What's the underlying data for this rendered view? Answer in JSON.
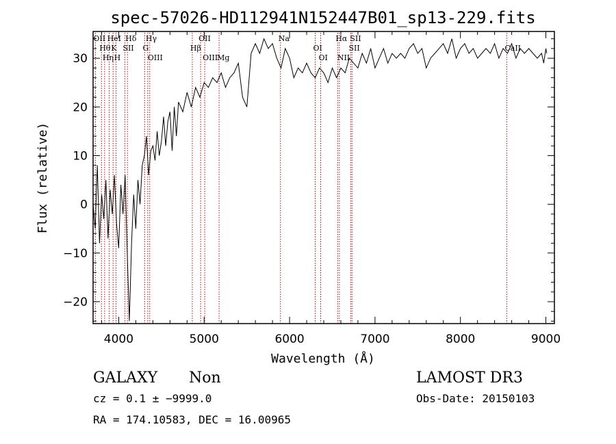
{
  "chart_data": {
    "type": "line",
    "title": "spec-57026-HD112941N152447B01_sp13-229.fits",
    "xlabel": "Wavelength (Å)",
    "ylabel": "Flux (relative)",
    "xlim": [
      3700,
      9100
    ],
    "ylim": [
      -24.5,
      35.5
    ],
    "xticks": [
      4000,
      5000,
      6000,
      7000,
      8000,
      9000
    ],
    "yticks": [
      -20,
      -10,
      0,
      10,
      20,
      30
    ],
    "xtick_labels": [
      "4000",
      "5000",
      "6000",
      "7000",
      "8000",
      "9000"
    ],
    "ytick_labels": [
      "−20",
      "−10",
      "0",
      "10",
      "20",
      "30"
    ],
    "series": [
      {
        "name": "spectrum",
        "x": [
          3700,
          3725,
          3750,
          3775,
          3800,
          3825,
          3850,
          3875,
          3900,
          3925,
          3950,
          3975,
          4000,
          4025,
          4050,
          4075,
          4100,
          4125,
          4150,
          4175,
          4200,
          4225,
          4250,
          4275,
          4300,
          4325,
          4350,
          4375,
          4400,
          4425,
          4450,
          4475,
          4500,
          4525,
          4550,
          4575,
          4600,
          4625,
          4650,
          4675,
          4700,
          4750,
          4800,
          4850,
          4900,
          4950,
          5000,
          5050,
          5100,
          5150,
          5200,
          5250,
          5300,
          5350,
          5400,
          5450,
          5500,
          5550,
          5600,
          5650,
          5700,
          5750,
          5800,
          5850,
          5900,
          5950,
          6000,
          6050,
          6100,
          6150,
          6200,
          6250,
          6300,
          6350,
          6400,
          6450,
          6500,
          6550,
          6600,
          6650,
          6700,
          6750,
          6800,
          6850,
          6900,
          6950,
          7000,
          7050,
          7100,
          7150,
          7200,
          7250,
          7300,
          7350,
          7400,
          7450,
          7500,
          7550,
          7600,
          7650,
          7700,
          7750,
          7800,
          7850,
          7900,
          7950,
          8000,
          8050,
          8100,
          8150,
          8200,
          8250,
          8300,
          8350,
          8400,
          8450,
          8500,
          8550,
          8600,
          8650,
          8700,
          8750,
          8800,
          8850,
          8900,
          8950,
          8975,
          9000,
          9010
        ],
        "values": [
          0,
          -5,
          8,
          -8,
          2,
          -3,
          5,
          -7,
          3,
          -2,
          6,
          -4,
          -9,
          4,
          -2,
          6,
          -10,
          -24,
          -8,
          2,
          -5,
          5,
          0,
          8,
          10,
          14,
          6,
          11,
          12,
          9,
          15,
          10,
          13,
          18,
          12,
          17,
          19,
          11,
          20,
          14,
          21,
          19,
          23,
          20,
          24,
          22,
          25,
          24,
          26,
          25,
          27,
          24,
          26,
          27,
          29,
          22,
          20,
          31,
          33,
          31,
          34,
          32,
          33,
          30,
          28,
          32,
          30,
          26,
          28,
          27,
          29,
          27,
          26,
          28,
          27,
          25,
          28,
          26,
          28,
          27,
          30,
          29,
          28,
          31,
          29,
          32,
          28,
          30,
          32,
          29,
          31,
          30,
          31,
          30,
          32,
          33,
          31,
          32,
          28,
          30,
          31,
          32,
          33,
          31,
          34,
          30,
          32,
          33,
          31,
          32,
          30,
          31,
          32,
          31,
          33,
          30,
          32,
          31,
          33,
          30,
          32,
          31,
          32,
          31,
          30,
          31,
          29,
          32,
          31
        ]
      }
    ],
    "emission_lines": [
      {
        "label": "OII",
        "wl": 3727
      },
      {
        "label": "Hθ",
        "wl": 3798
      },
      {
        "label": "Hη",
        "wl": 3835
      },
      {
        "label": "HeI",
        "wl": 3889
      },
      {
        "label": "K",
        "wl": 3934
      },
      {
        "label": "H",
        "wl": 3969
      },
      {
        "label": "Hδ",
        "wl": 4102
      },
      {
        "label": "SII",
        "wl": 4072
      },
      {
        "label": "OIII",
        "wl": 4363
      },
      {
        "label": "Hγ",
        "wl": 4340
      },
      {
        "label": "G",
        "wl": 4304
      },
      {
        "label": "OIII",
        "wl": 5007
      },
      {
        "label": "OII",
        "wl": 4959
      },
      {
        "label": "Hβ",
        "wl": 4861
      },
      {
        "label": "Mg",
        "wl": 5175
      },
      {
        "label": "Na",
        "wl": 5893
      },
      {
        "label": "OI",
        "wl": 6300
      },
      {
        "label": "OI",
        "wl": 6364
      },
      {
        "label": "Hα",
        "wl": 6563
      },
      {
        "label": "SII",
        "wl": 6716
      },
      {
        "label": "NII",
        "wl": 6583
      },
      {
        "label": "SII",
        "wl": 6731
      },
      {
        "label": "CaII",
        "wl": 8542
      }
    ]
  },
  "footer": {
    "class_label": "GALAXY",
    "subclass_label": "Non",
    "cz_line": "cz = 0.1 ± −9999.0",
    "radec_line": "RA = 174.10583, DEC =  16.00965",
    "survey": "LAMOST DR3",
    "obs_date": "Obs-Date: 20150103"
  }
}
